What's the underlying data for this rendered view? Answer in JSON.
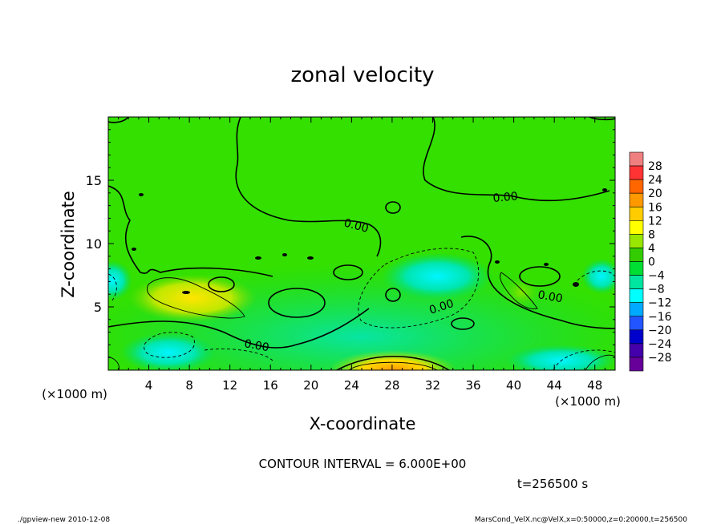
{
  "chart_data": {
    "type": "heatmap",
    "title": "zonal velocity",
    "xlabel": "X-coordinate",
    "ylabel": "Z-coordinate",
    "x_unit_label": "(×1000 m)",
    "y_unit_label": "(×1000 m)",
    "xlim": [
      0,
      50
    ],
    "ylim": [
      0,
      20
    ],
    "x_ticks": [
      4,
      8,
      12,
      16,
      20,
      24,
      28,
      32,
      36,
      40,
      44,
      48
    ],
    "y_ticks": [
      5,
      10,
      15
    ],
    "colorbar_levels": [
      28,
      24,
      20,
      16,
      12,
      8,
      4,
      0,
      -4,
      -8,
      -12,
      -16,
      -20,
      -24,
      -28
    ],
    "colorbar_colors": [
      "#f08080",
      "#ff3333",
      "#ff6600",
      "#ff9900",
      "#ffcc00",
      "#ffff00",
      "#99e600",
      "#33cc00",
      "#00dd33",
      "#00e6a0",
      "#00ffff",
      "#00aaff",
      "#2255ff",
      "#0000cc",
      "#4400aa",
      "#660099"
    ],
    "contour_labels": [
      "0.00",
      "0.00",
      "0.00",
      "0.00",
      "0.00"
    ],
    "contour_interval_text": "CONTOUR INTERVAL = 6.000E+00",
    "time_text": "t=256500 s"
  },
  "footer": {
    "left": "./gpview-new  2010-12-08",
    "right": "MarsCond_VelX.nc@VelX,x=0:50000,z=0:20000,t=256500"
  },
  "colors": {
    "background_field": "#33e000",
    "zero_contour": "#000000"
  }
}
